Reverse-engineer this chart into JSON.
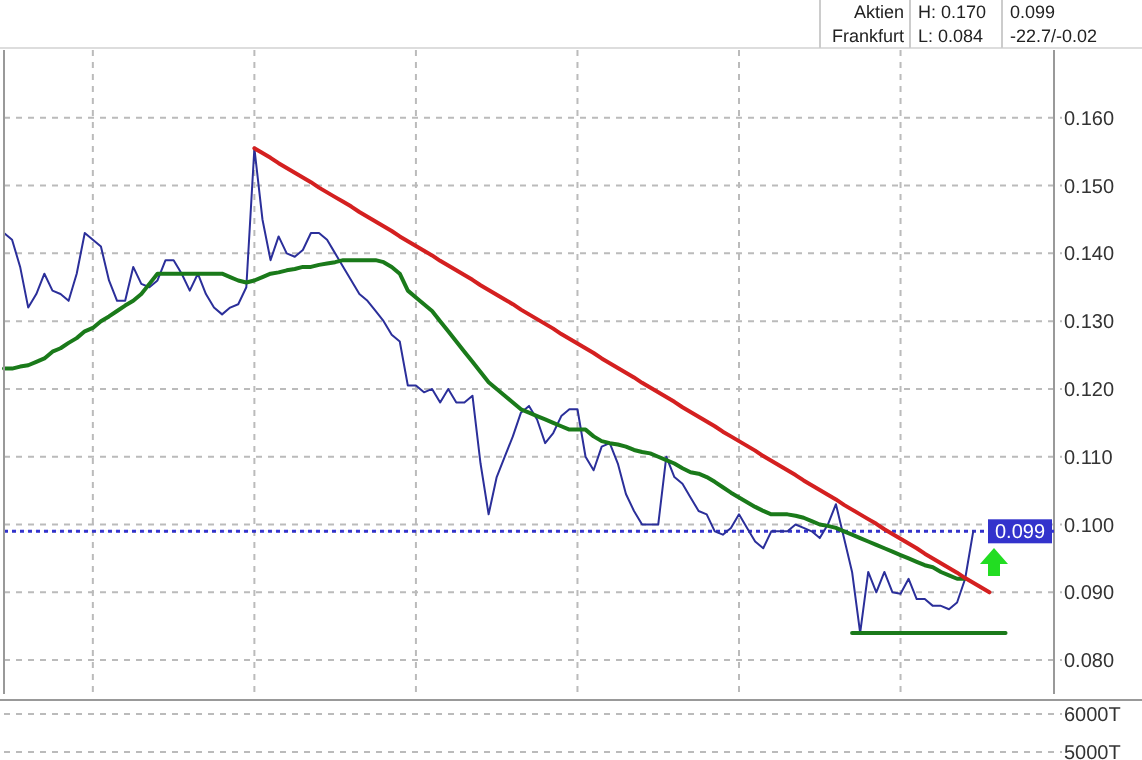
{
  "chart_data": [
    {
      "type": "line",
      "annotations": [
        "Aktien",
        "Frankfurt",
        "H: 0.170",
        "L: 0.084",
        "0.099",
        "-22.7/-0.02"
      ],
      "categories": [
        null,
        null,
        null,
        null,
        null,
        null,
        null,
        null,
        null,
        null,
        null,
        null,
        null,
        null,
        null,
        null,
        null,
        null,
        null,
        null,
        null,
        null,
        null,
        null,
        null,
        null,
        null,
        null,
        null,
        null,
        null,
        null,
        null,
        null,
        null,
        null,
        null,
        null,
        null,
        null,
        null,
        null,
        null,
        null,
        null,
        null,
        null,
        null,
        null,
        null,
        null,
        null,
        null,
        null,
        null,
        null,
        null,
        null,
        null,
        null,
        null,
        null,
        null,
        null,
        null,
        null,
        null,
        null,
        null,
        null,
        null,
        null,
        null,
        null,
        null,
        null,
        null,
        null,
        null,
        null,
        null,
        null,
        null,
        null,
        null,
        null,
        null,
        null,
        null,
        null,
        null,
        null,
        null,
        null,
        null,
        null,
        null,
        null,
        null,
        null,
        null,
        null,
        null,
        null,
        null,
        null,
        null,
        null,
        null,
        null,
        null,
        null,
        null,
        null,
        null,
        null,
        null,
        null,
        null,
        null,
        null,
        null,
        null,
        null,
        null,
        null,
        null,
        null,
        null,
        null,
        null
      ],
      "ylim": [
        0.075,
        0.17
      ],
      "yticks": [
        {
          "value": 0.08,
          "label": "0.080"
        },
        {
          "value": 0.09,
          "label": "0.090"
        },
        {
          "value": 0.1,
          "label": "0.100"
        },
        {
          "value": 0.11,
          "label": "0.110"
        },
        {
          "value": 0.12,
          "label": "0.120"
        },
        {
          "value": 0.13,
          "label": "0.130"
        },
        {
          "value": 0.14,
          "label": "0.140"
        },
        {
          "value": 0.15,
          "label": "0.150"
        },
        {
          "value": 0.16,
          "label": "0.160"
        }
      ],
      "grid": true,
      "tick_labels": "y",
      "ref_lines": [
        {
          "axis": "y",
          "value": 0.099,
          "label": "0.099",
          "color": "#3333cc",
          "line_style": "dotted"
        }
      ],
      "series": [
        {
          "color": "#2b2f9a",
          "values": [
            0.143,
            0.142,
            0.138,
            0.132,
            0.134,
            0.137,
            0.1345,
            0.134,
            0.133,
            0.137,
            0.143,
            0.142,
            0.141,
            0.136,
            0.133,
            0.133,
            0.138,
            0.1355,
            0.135,
            0.136,
            0.139,
            0.139,
            0.137,
            0.1345,
            0.137,
            0.134,
            0.132,
            0.131,
            0.132,
            0.1325,
            0.135,
            0.1555,
            0.145,
            0.139,
            0.1425,
            0.14,
            0.1395,
            0.1405,
            0.143,
            0.143,
            0.142,
            0.14,
            0.138,
            0.136,
            0.134,
            0.133,
            0.1315,
            0.13,
            0.128,
            0.127,
            0.1205,
            0.1205,
            0.1195,
            0.12,
            0.118,
            0.12,
            0.118,
            0.118,
            0.119,
            0.109,
            0.1015,
            0.107,
            0.11,
            0.113,
            0.1165,
            0.1175,
            0.1155,
            0.112,
            0.1135,
            0.116,
            0.117,
            0.117,
            0.11,
            0.108,
            0.1115,
            0.112,
            0.109,
            0.1045,
            0.102,
            0.1,
            0.1,
            0.1,
            0.11,
            0.107,
            0.106,
            0.104,
            0.102,
            0.1015,
            0.099,
            0.0985,
            0.0995,
            0.1015,
            0.0995,
            0.0975,
            0.0965,
            0.099,
            0.099,
            0.099,
            0.1,
            0.0995,
            0.099,
            0.098,
            0.1,
            0.103,
            0.098,
            0.093,
            0.084,
            0.093,
            0.09,
            0.093,
            0.09,
            0.0898,
            0.092,
            0.089,
            0.089,
            0.088,
            0.088,
            0.0875,
            0.0885,
            0.092,
            0.099,
            null,
            null,
            null,
            null,
            null,
            null,
            null,
            null,
            null,
            null
          ]
        },
        {
          "color": "#1a7a1a",
          "values": [
            0.123,
            0.123,
            0.1233,
            0.1235,
            0.124,
            0.1245,
            0.1255,
            0.126,
            0.1268,
            0.1275,
            0.1285,
            0.129,
            0.13,
            0.1307,
            0.1315,
            0.1323,
            0.133,
            0.134,
            0.1355,
            0.137,
            0.137,
            0.137,
            0.137,
            0.137,
            0.137,
            0.137,
            0.137,
            0.137,
            0.1365,
            0.136,
            0.1357,
            0.136,
            0.1365,
            0.137,
            0.1372,
            0.1375,
            0.1377,
            0.138,
            0.138,
            0.1383,
            0.1385,
            0.1387,
            0.139,
            0.139,
            0.139,
            0.139,
            0.139,
            0.1387,
            0.138,
            0.137,
            0.1345,
            0.1335,
            0.1325,
            0.1315,
            0.13,
            0.1285,
            0.127,
            0.1255,
            0.124,
            0.1225,
            0.121,
            0.12,
            0.119,
            0.118,
            0.117,
            0.1165,
            0.116,
            0.1155,
            0.115,
            0.1145,
            0.114,
            0.114,
            0.114,
            0.113,
            0.1123,
            0.112,
            0.1118,
            0.1115,
            0.111,
            0.1107,
            0.1105,
            0.11,
            0.1095,
            0.109,
            0.1083,
            0.1077,
            0.1075,
            0.107,
            0.1063,
            0.1055,
            0.1047,
            0.104,
            0.1033,
            0.1026,
            0.102,
            0.1015,
            0.1015,
            0.1015,
            0.1013,
            0.101,
            0.1005,
            0.1,
            0.0998,
            0.0995,
            0.099,
            0.0985,
            0.098,
            0.0975,
            0.097,
            0.0965,
            0.096,
            0.0955,
            0.095,
            0.0945,
            0.094,
            0.0937,
            0.093,
            0.0925,
            0.092,
            0.092,
            null,
            null,
            null,
            null,
            null,
            null,
            null,
            null,
            null,
            null,
            null
          ]
        },
        {
          "color": "#d42020",
          "values": [
            null,
            null,
            null,
            null,
            null,
            null,
            null,
            null,
            null,
            null,
            null,
            null,
            null,
            null,
            null,
            null,
            null,
            null,
            null,
            null,
            null,
            null,
            null,
            null,
            null,
            null,
            null,
            null,
            null,
            null,
            null,
            0.1555,
            0.1548,
            0.1541,
            0.1533,
            0.1526,
            0.1519,
            0.1512,
            0.1505,
            0.1497,
            0.149,
            0.1483,
            0.1476,
            0.1469,
            0.1461,
            0.1454,
            0.1447,
            0.144,
            0.1433,
            0.1425,
            0.1418,
            0.1411,
            0.1404,
            0.1397,
            0.1389,
            0.1382,
            0.1375,
            0.1368,
            0.1361,
            0.1353,
            0.1346,
            0.1339,
            0.1332,
            0.1325,
            0.1317,
            0.131,
            0.1303,
            0.1296,
            0.1289,
            0.1281,
            0.1274,
            0.1267,
            0.126,
            0.1253,
            0.1245,
            0.1238,
            0.1231,
            0.1224,
            0.1217,
            0.1209,
            0.1202,
            0.1195,
            0.1188,
            0.1181,
            0.1173,
            0.1166,
            0.1159,
            0.1152,
            0.1145,
            0.1137,
            0.113,
            0.1123,
            0.1116,
            0.1109,
            0.1101,
            0.1094,
            0.1087,
            0.108,
            0.1073,
            0.1065,
            0.1058,
            0.1051,
            0.1044,
            0.1037,
            0.1029,
            0.1022,
            0.1015,
            0.1008,
            0.1001,
            0.0993,
            0.0986,
            0.0979,
            0.0972,
            0.0965,
            0.0957,
            0.095,
            0.0943,
            0.0936,
            0.0929,
            0.0921,
            0.0914,
            0.0907,
            0.09,
            null,
            null,
            null,
            null,
            null,
            null,
            null,
            null
          ]
        },
        {
          "color": "#1a7a1a",
          "values": [
            null,
            null,
            null,
            null,
            null,
            null,
            null,
            null,
            null,
            null,
            null,
            null,
            null,
            null,
            null,
            null,
            null,
            null,
            null,
            null,
            null,
            null,
            null,
            null,
            null,
            null,
            null,
            null,
            null,
            null,
            null,
            null,
            null,
            null,
            null,
            null,
            null,
            null,
            null,
            null,
            null,
            null,
            null,
            null,
            null,
            null,
            null,
            null,
            null,
            null,
            null,
            null,
            null,
            null,
            null,
            null,
            null,
            null,
            null,
            null,
            null,
            null,
            null,
            null,
            null,
            null,
            null,
            null,
            null,
            null,
            null,
            null,
            null,
            null,
            null,
            null,
            null,
            null,
            null,
            null,
            null,
            null,
            null,
            null,
            null,
            null,
            null,
            null,
            null,
            null,
            null,
            null,
            null,
            null,
            null,
            null,
            null,
            null,
            null,
            null,
            null,
            null,
            null,
            null,
            null,
            0.084,
            0.084,
            0.084,
            0.084,
            0.084,
            0.084,
            0.084,
            0.084,
            0.084,
            0.084,
            0.084,
            0.084,
            0.084,
            0.084,
            0.084,
            0.084,
            0.084,
            0.084,
            0.084,
            0.084,
            null,
            null,
            null,
            null,
            null,
            null
          ]
        }
      ]
    },
    {
      "type": "other",
      "annotations": [
        "6000T",
        "5000T"
      ]
    }
  ]
}
